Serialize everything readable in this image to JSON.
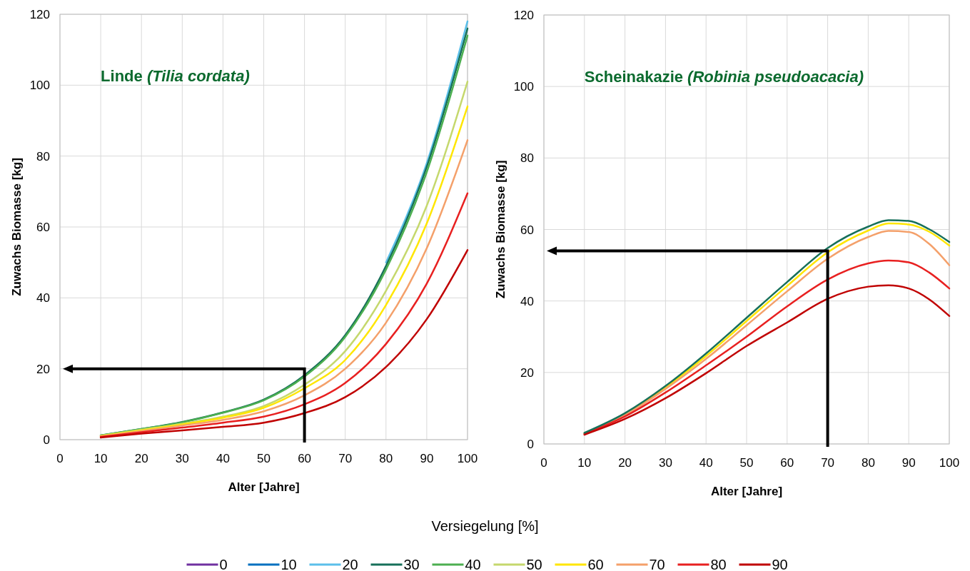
{
  "chart_data": [
    {
      "type": "line",
      "title": "Linde (Tilia cordata)",
      "xlabel": "Alter [Jahre]",
      "ylabel": "Zuwachs Biomasse [kg]",
      "legend_title": "Versiegelung [%]",
      "legend": "bottom",
      "grid": true,
      "x": [
        10,
        20,
        30,
        40,
        50,
        60,
        70,
        80,
        90,
        100
      ],
      "xlim": [
        0,
        100
      ],
      "xticks": [
        0,
        10,
        20,
        30,
        40,
        50,
        60,
        70,
        80,
        90,
        100
      ],
      "ylim": [
        0,
        120
      ],
      "yticks": [
        0,
        20,
        40,
        60,
        80,
        100,
        120
      ],
      "series": [
        {
          "name": "0",
          "color": "#7030a0",
          "values": [
            null,
            null,
            null,
            null,
            null,
            null,
            null,
            null,
            null,
            null
          ]
        },
        {
          "name": "10",
          "color": "#0070c0",
          "values": [
            null,
            null,
            null,
            null,
            null,
            null,
            null,
            null,
            null,
            null
          ]
        },
        {
          "name": "20",
          "color": "#5bbfea",
          "values": [
            null,
            null,
            null,
            null,
            null,
            null,
            null,
            50,
            78,
            118
          ]
        },
        {
          "name": "30",
          "color": "#17705a",
          "values": [
            1.2,
            3,
            5,
            7.7,
            11.3,
            18.2,
            29.5,
            49,
            77,
            116
          ]
        },
        {
          "name": "40",
          "color": "#4caf50",
          "values": [
            1.2,
            3,
            4.9,
            7.6,
            11.1,
            17.8,
            29,
            48,
            75.5,
            114
          ]
        },
        {
          "name": "50",
          "color": "#c5d86d",
          "values": [
            1.1,
            2.8,
            4.5,
            6.5,
            9.5,
            15.5,
            25,
            42,
            66,
            101
          ]
        },
        {
          "name": "60",
          "color": "#ffe600",
          "values": [
            1.0,
            2.6,
            4.3,
            6.2,
            9,
            14.5,
            22.5,
            38,
            61,
            94
          ]
        },
        {
          "name": "70",
          "color": "#f4a06a",
          "values": [
            0.9,
            2.4,
            4,
            5.6,
            8,
            12.5,
            20,
            33,
            54,
            84.5
          ]
        },
        {
          "name": "80",
          "color": "#e82020",
          "values": [
            0.8,
            2.1,
            3.4,
            4.8,
            6.5,
            10,
            16,
            27,
            44,
            69.5
          ]
        },
        {
          "name": "90",
          "color": "#c00000",
          "values": [
            0.6,
            1.7,
            2.6,
            3.6,
            4.8,
            7.5,
            12,
            20.5,
            34,
            53.5
          ]
        }
      ]
    },
    {
      "type": "line",
      "title": "Scheinakazie (Robinia pseudoacacia)",
      "xlabel": "Alter [Jahre]",
      "ylabel": "Zuwachs Biomasse [kg]",
      "grid": true,
      "x": [
        10,
        20,
        30,
        40,
        50,
        60,
        70,
        80,
        85,
        90,
        95,
        100
      ],
      "xlim": [
        0,
        100
      ],
      "xticks": [
        0,
        10,
        20,
        30,
        40,
        50,
        60,
        70,
        80,
        90,
        100
      ],
      "ylim": [
        0,
        120
      ],
      "yticks": [
        0,
        20,
        40,
        60,
        80,
        100,
        120
      ],
      "series": [
        {
          "color": "#ffe600",
          "values": [
            3,
            8.3,
            15.8,
            24.6,
            34.4,
            44.2,
            53.6,
            59.7,
            61.7,
            61.4,
            59.4,
            55.5
          ]
        },
        {
          "color": "#f4a06a",
          "values": [
            2.9,
            8.1,
            15.4,
            23.8,
            33.2,
            42.7,
            51.8,
            57.9,
            59.6,
            59.3,
            56,
            50
          ]
        },
        {
          "color": "#e82020",
          "values": [
            2.8,
            7.7,
            14.4,
            22,
            30,
            38.5,
            46,
            50.5,
            51.3,
            50.8,
            48,
            43.5
          ]
        },
        {
          "color": "#c00000",
          "values": [
            2.6,
            7,
            12.8,
            19.8,
            27.4,
            34,
            40.6,
            44,
            44.4,
            43.5,
            40.5,
            35.8
          ]
        },
        {
          "color": "#17705a",
          "values": [
            3.1,
            8.6,
            16.2,
            25.3,
            35.3,
            45.3,
            54.8,
            60.8,
            62.6,
            62.4,
            60.1,
            56.5
          ]
        }
      ]
    }
  ]
}
